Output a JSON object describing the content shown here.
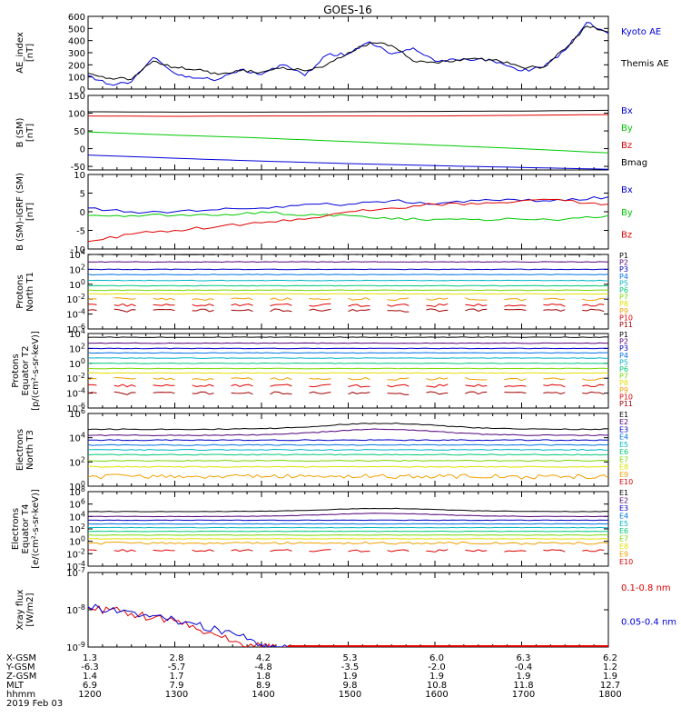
{
  "title": "GOES-16",
  "colors": {
    "black": "#000000",
    "blue": "#0000d8",
    "red": "#e00000",
    "green": "#00c800",
    "P": [
      "#000000",
      "#500078",
      "#0000c8",
      "#0070e8",
      "#00b4c8",
      "#00c878",
      "#78d800",
      "#e0e000",
      "#f0a000",
      "#e00000",
      "#a00000"
    ],
    "E": [
      "#000000",
      "#500078",
      "#0000c8",
      "#0070e8",
      "#00b4c8",
      "#00c878",
      "#78d800",
      "#e0e000",
      "#f0a000",
      "#e00000",
      "#a00000"
    ]
  },
  "footer": {
    "rows": [
      {
        "label": "X-GSM",
        "values": [
          "1.3",
          "2.8",
          "4.2",
          "5.3",
          "6.0",
          "6.3",
          "6.2"
        ]
      },
      {
        "label": "Y-GSM",
        "values": [
          "-6.3",
          "-5.7",
          "-4.8",
          "-3.5",
          "-2.0",
          "-0.4",
          "1.2"
        ]
      },
      {
        "label": "Z-GSM",
        "values": [
          "1.4",
          "1.7",
          "1.8",
          "1.9",
          "1.9",
          "1.9",
          "1.9"
        ]
      },
      {
        "label": "MLT",
        "values": [
          "6.9",
          "7.9",
          "8.9",
          "9.8",
          "10.8",
          "11.8",
          "12.7"
        ]
      },
      {
        "label": "hhmm",
        "values": [
          "1200",
          "1300",
          "1400",
          "1500",
          "1600",
          "1700",
          "1800"
        ]
      }
    ],
    "date": "2019 Feb 03"
  },
  "chart_data": [
    {
      "type": "line",
      "id": "ae",
      "ylabel": [
        "AE_index",
        "[nT]"
      ],
      "ylim": [
        0,
        600
      ],
      "yscale": "linear",
      "yticks": [
        "0",
        "100",
        "200",
        "300",
        "400",
        "500",
        "600"
      ],
      "legend": [
        "Kyoto AE",
        "Themis AE"
      ],
      "x_hours": [
        12.0,
        12.25,
        12.5,
        12.75,
        13.0,
        13.25,
        13.5,
        13.75,
        14.0,
        14.25,
        14.5,
        14.75,
        15.0,
        15.25,
        15.5,
        15.75,
        16.0,
        16.25,
        16.5,
        16.75,
        17.0,
        17.25,
        17.5,
        17.75,
        18.0
      ],
      "series": [
        {
          "name": "Kyoto AE",
          "color": "blue",
          "values": [
            110,
            40,
            60,
            260,
            130,
            90,
            80,
            160,
            120,
            200,
            110,
            280,
            290,
            390,
            290,
            340,
            230,
            240,
            250,
            220,
            150,
            180,
            320,
            550,
            460
          ]
        },
        {
          "name": "Themis AE",
          "color": "black",
          "values": [
            130,
            90,
            80,
            230,
            180,
            160,
            120,
            150,
            140,
            180,
            150,
            200,
            300,
            380,
            360,
            230,
            220,
            240,
            250,
            230,
            180,
            180,
            330,
            520,
            470
          ]
        }
      ]
    },
    {
      "type": "line",
      "id": "bsm",
      "ylabel": [
        "B (SM)",
        "[nT]"
      ],
      "ylim": [
        -60,
        150
      ],
      "yscale": "linear",
      "yticks": [
        "-50",
        "0",
        "50",
        "100",
        "150"
      ],
      "legend": [
        "Bx",
        "By",
        "Bz",
        "Bmag"
      ],
      "x_hours": [
        12.0,
        13.0,
        14.0,
        15.0,
        16.0,
        17.0,
        18.0
      ],
      "series": [
        {
          "name": "Bx",
          "color": "blue",
          "values": [
            -18,
            -27,
            -35,
            -42,
            -48,
            -53,
            -58
          ]
        },
        {
          "name": "By",
          "color": "green",
          "values": [
            47,
            38,
            30,
            20,
            10,
            0,
            -12
          ]
        },
        {
          "name": "Bz",
          "color": "red",
          "values": [
            92,
            91,
            92,
            92,
            92,
            94,
            96
          ]
        },
        {
          "name": "Bmag",
          "color": "black",
          "values": [
            104,
            103,
            103,
            104,
            105,
            106,
            108
          ]
        }
      ]
    },
    {
      "type": "line",
      "id": "digrf",
      "ylabel": [
        "B (SM)-IGRF (SM)",
        "[nT]"
      ],
      "ylim": [
        -10,
        10
      ],
      "yscale": "linear",
      "yticks": [
        "-10",
        "-5",
        "0",
        "5",
        "10"
      ],
      "legend": [
        "Bx",
        "By",
        "Bz"
      ],
      "x_hours": [
        12.0,
        12.5,
        13.0,
        13.5,
        14.0,
        14.5,
        15.0,
        15.5,
        16.0,
        16.5,
        17.0,
        17.5,
        18.0
      ],
      "series": [
        {
          "name": "Bx",
          "color": "blue",
          "values": [
            1,
            0,
            0,
            0.5,
            1,
            2,
            2,
            3,
            2,
            3,
            3,
            3,
            4
          ]
        },
        {
          "name": "By",
          "color": "green",
          "values": [
            -1,
            -1,
            -1,
            -1,
            0,
            -1,
            -1,
            -2,
            -2,
            -2,
            -2,
            -2,
            -1
          ]
        },
        {
          "name": "Bz",
          "color": "red",
          "values": [
            -8,
            -6,
            -5,
            -4,
            -3,
            -2,
            0,
            1,
            2,
            2,
            3,
            3,
            2
          ]
        }
      ]
    },
    {
      "type": "line",
      "id": "p_north",
      "ylabel": [
        "Protons",
        "North T1"
      ],
      "ylim": [
        1e-06,
        10000.0
      ],
      "yscale": "log",
      "yticks": [
        "10^-6",
        "10^-4",
        "10^-2",
        "10^0",
        "10^2",
        "10^4"
      ],
      "legend": [
        "P1",
        "P2",
        "P3",
        "P4",
        "P5",
        "P6",
        "P7",
        "P8",
        "P9",
        "P10",
        "P11"
      ],
      "levels_log10": [
        4.0,
        3.0,
        2.0,
        1.3,
        0.5,
        -0.2,
        -0.8,
        -1.3,
        -2.0,
        -2.8,
        -3.5
      ]
    },
    {
      "type": "line",
      "id": "p_equator",
      "ylabel": [
        "Protons",
        "Equator T2",
        "[p/(cm²-s-sr-keV)]"
      ],
      "ylim": [
        1e-06,
        10000.0
      ],
      "yscale": "log",
      "yticks": [
        "10^-6",
        "10^-4",
        "10^-2",
        "10^0",
        "10^2",
        "10^4"
      ],
      "legend": [
        "P1",
        "P2",
        "P3",
        "P4",
        "P5",
        "P6",
        "P7",
        "P8",
        "P9",
        "P10",
        "P11"
      ],
      "levels_log10": [
        3.5,
        2.7,
        2.0,
        1.4,
        0.7,
        0.0,
        -0.7,
        -1.3,
        -2.1,
        -3.0,
        -4.0
      ]
    },
    {
      "type": "line",
      "id": "e_north",
      "ylabel": [
        "Electrons",
        "North T3"
      ],
      "ylim": [
        1,
        1000000.0
      ],
      "yscale": "log",
      "yticks": [
        "10^0",
        "10^2",
        "10^4",
        "10^6"
      ],
      "legend": [
        "E1",
        "E2",
        "E3",
        "E4",
        "E5",
        "E6",
        "E7",
        "E8",
        "E9",
        "E10"
      ],
      "levels_log10": [
        4.7,
        4.2,
        3.8,
        3.4,
        3.0,
        2.6,
        2.1,
        1.6,
        0.8,
        -0.3
      ]
    },
    {
      "type": "line",
      "id": "e_equator",
      "ylabel": [
        "Electrons",
        "Equator T4",
        "[e/(cm²-s-sr-keV)]"
      ],
      "ylim": [
        0.0001,
        100000000.0
      ],
      "yscale": "log",
      "yticks": [
        "10^-4",
        "10^-2",
        "10^0",
        "10^2",
        "10^4",
        "10^6",
        "10^8"
      ],
      "legend": [
        "E1",
        "E2",
        "E3",
        "E4",
        "E5",
        "E6",
        "E7",
        "E8",
        "E9",
        "E10"
      ],
      "levels_log10": [
        4.8,
        4.0,
        3.4,
        2.8,
        2.2,
        1.6,
        1.0,
        0.4,
        -0.3,
        -1.5
      ]
    },
    {
      "type": "line",
      "id": "xray",
      "ylabel": [
        "Xray flux",
        "[W/m2]"
      ],
      "ylim": [
        1e-09,
        1e-07
      ],
      "yscale": "log",
      "yticks": [
        "10^-9",
        "10^-8",
        "10^-7"
      ],
      "legend": [
        "0.1-0.8 nm",
        "0.05-0.4 nm"
      ],
      "x_hours": [
        12.0,
        12.25,
        12.5,
        12.75,
        13.0,
        13.25,
        13.5,
        13.75,
        14.0,
        14.1,
        14.3
      ],
      "series": [
        {
          "name": "0.1-0.8 nm",
          "color": "red",
          "values": [
            1.1e-08,
            1e-08,
            8e-09,
            6e-09,
            5e-09,
            3e-09,
            2e-09,
            1.3e-09,
            1e-09,
            1e-09,
            1e-09
          ]
        },
        {
          "name": "0.05-0.4 nm",
          "color": "blue",
          "values": [
            1.2e-08,
            1e-08,
            9e-09,
            7e-09,
            5.5e-09,
            4e-09,
            3e-09,
            2e-09,
            1.2e-09,
            1e-09,
            1e-09
          ]
        }
      ]
    }
  ]
}
